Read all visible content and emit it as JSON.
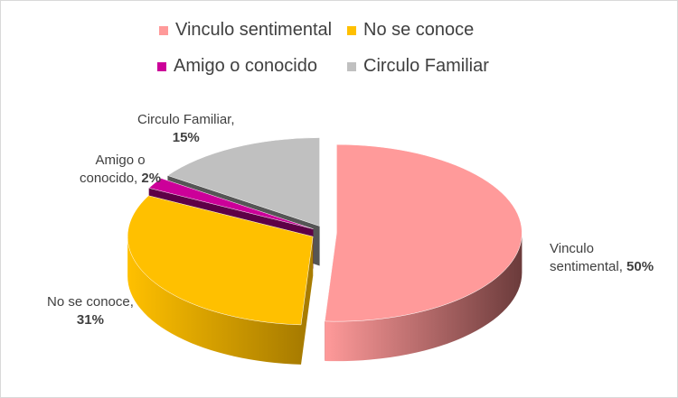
{
  "chart_data": {
    "type": "pie",
    "style": "3d-exploded",
    "title": "",
    "legend_position": "top",
    "slices": [
      {
        "name": "Vinculo sentimental",
        "value": 50,
        "label_line1": "Vinculo",
        "label_line2": "sentimental,",
        "pct": "50%",
        "color": "#ff9a9a",
        "side_color": "#6b3b3b"
      },
      {
        "name": "No se conoce",
        "value": 31,
        "label_line1": "No se conoce,",
        "label_line2": "",
        "pct": "31%",
        "color": "#ffc000",
        "side_color": "#a87c00"
      },
      {
        "name": "Amigo o conocido",
        "value": 2,
        "label_line1": "Amigo o",
        "label_line2": "conocido,",
        "pct": "2%",
        "color": "#cc0099",
        "side_color": "#5e0046"
      },
      {
        "name": "Circulo Familiar",
        "value": 15,
        "label_line1": "Circulo Familiar,",
        "label_line2": "",
        "pct": "15%",
        "color": "#c0c0c0",
        "side_color": "#555555"
      }
    ]
  }
}
